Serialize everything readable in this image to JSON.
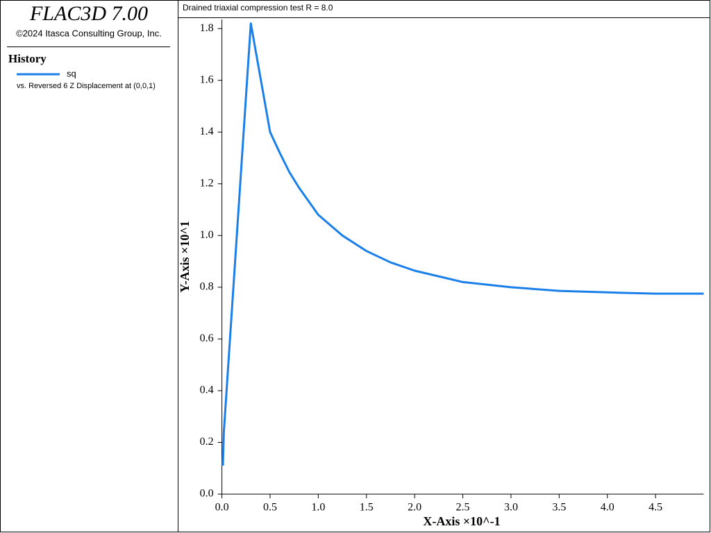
{
  "app_title": "FLAC3D 7.00",
  "copyright": "©2024 Itasca Consulting Group, Inc.",
  "history_heading": "History",
  "legend_caption": "vs. Reversed 6 Z Displacement at (0,0,1)",
  "chart_data": {
    "type": "line",
    "title": "Drained triaxial compression test R = 8.0",
    "x_label": "X-Axis ×10^-1",
    "y_label": "Y-Axis ×10^1",
    "x": [
      0.01,
      0.02,
      0.3,
      0.4,
      0.5,
      0.6,
      0.7,
      0.8,
      1.0,
      1.25,
      1.5,
      1.75,
      2.0,
      2.5,
      3.0,
      3.5,
      4.0,
      4.5,
      5.0
    ],
    "series": [
      {
        "name": "sq",
        "color": "#1a7fe8",
        "values": [
          0.11,
          0.24,
          1.82,
          1.61,
          1.4,
          1.32,
          1.245,
          1.185,
          1.08,
          1.0,
          0.94,
          0.896,
          0.864,
          0.82,
          0.8,
          0.786,
          0.78,
          0.775,
          0.775
        ]
      }
    ],
    "xlim": [
      0,
      5.0
    ],
    "ylim": [
      0,
      1.83
    ],
    "xticks": [
      {
        "value": 0,
        "label": "0.0"
      },
      0.5,
      {
        "value": 1,
        "label": "1.0"
      },
      1.5,
      {
        "value": 2,
        "label": "2.0"
      },
      2.5,
      {
        "value": 3,
        "label": "3.0"
      },
      3.5,
      {
        "value": 4,
        "label": "4.0"
      },
      4.5
    ],
    "yticks": [
      {
        "value": 0,
        "label": "0.0"
      },
      0.2,
      0.4,
      0.6,
      0.8,
      {
        "value": 1,
        "label": "1.0"
      },
      1.2,
      1.4,
      1.6,
      1.8
    ]
  }
}
